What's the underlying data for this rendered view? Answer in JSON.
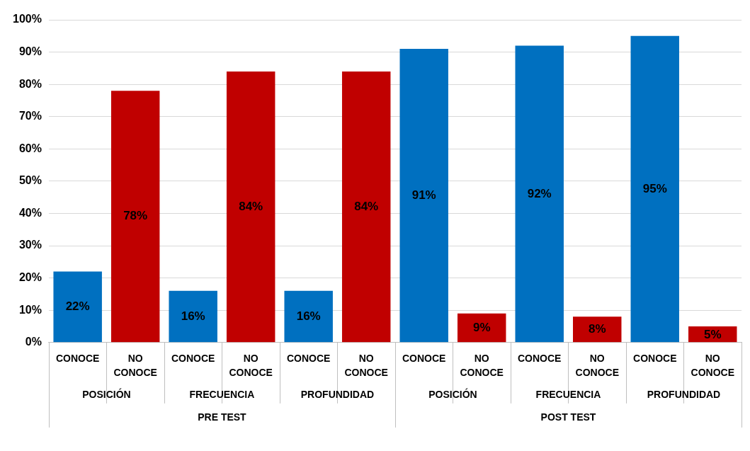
{
  "chart_data": {
    "type": "bar",
    "categories": [
      "CONOCE",
      "NO CONOCE",
      "CONOCE",
      "NO CONOCE",
      "CONOCE",
      "NO CONOCE",
      "CONOCE",
      "NO CONOCE",
      "CONOCE",
      "NO CONOCE",
      "CONOCE",
      "NO CONOCE"
    ],
    "values": [
      22,
      78,
      16,
      84,
      16,
      84,
      91,
      9,
      92,
      8,
      95,
      5
    ],
    "colors": [
      "#0070c0",
      "#c00000",
      "#0070c0",
      "#c00000",
      "#0070c0",
      "#c00000",
      "#0070c0",
      "#c00000",
      "#0070c0",
      "#c00000",
      "#0070c0",
      "#c00000"
    ],
    "ylim": [
      0,
      100
    ],
    "yticks": [
      {
        "value": 0,
        "label": "0%"
      },
      {
        "value": 10,
        "label": "10%"
      },
      {
        "value": 20,
        "label": "20%"
      },
      {
        "value": 30,
        "label": "30%"
      },
      {
        "value": 40,
        "label": "40%"
      },
      {
        "value": 50,
        "label": "50%"
      },
      {
        "value": 60,
        "label": "60%"
      },
      {
        "value": 70,
        "label": "70%"
      },
      {
        "value": 80,
        "label": "80%"
      },
      {
        "value": 90,
        "label": "90%"
      },
      {
        "value": 100,
        "label": "100%"
      }
    ],
    "value_labels": [
      "22%",
      "78%",
      "16%",
      "84%",
      "16%",
      "84%",
      "91%",
      "9%",
      "92%",
      "8%",
      "95%",
      "5%"
    ],
    "annotations": [
      "POSICIÓN",
      "FRECUENCIA",
      "PROFUNDIDAD",
      "POSICIÓN",
      "FRECUENCIA",
      "PROFUNDIDAD",
      "PRE TEST",
      "POST TEST"
    ],
    "grid": "y",
    "legend": false
  }
}
